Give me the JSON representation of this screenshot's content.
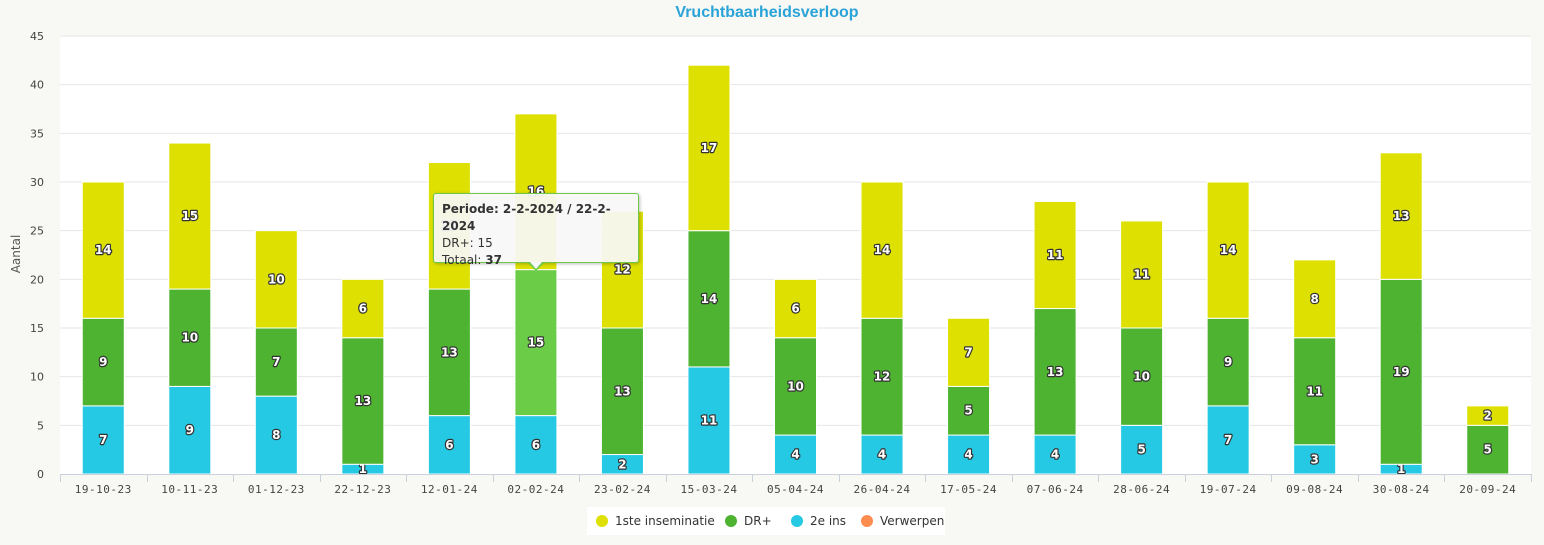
{
  "chart_data": {
    "type": "bar",
    "stacked": true,
    "title": "Vruchtbaarheidsverloop",
    "xlabel": "",
    "ylabel": "Aantal",
    "ylim": [
      0,
      45
    ],
    "yticks": [
      0,
      5,
      10,
      15,
      20,
      25,
      30,
      35,
      40,
      45
    ],
    "categories": [
      "19-10-23",
      "10-11-23",
      "01-12-23",
      "22-12-23",
      "12-01-24",
      "02-02-24",
      "23-02-24",
      "15-03-24",
      "05-04-24",
      "26-04-24",
      "17-05-24",
      "07-06-24",
      "28-06-24",
      "19-07-24",
      "09-08-24",
      "30-08-24",
      "20-09-24"
    ],
    "series": [
      {
        "name": "2e ins",
        "color": "#26c9e3",
        "values": [
          7,
          9,
          8,
          1,
          6,
          6,
          2,
          11,
          4,
          4,
          4,
          4,
          5,
          7,
          3,
          1,
          0
        ]
      },
      {
        "name": "DR+",
        "color": "#4db331",
        "values": [
          9,
          10,
          7,
          13,
          13,
          15,
          13,
          14,
          10,
          12,
          5,
          13,
          10,
          9,
          11,
          19,
          5
        ]
      },
      {
        "name": "1ste inseminatie",
        "color": "#dde000",
        "values": [
          14,
          15,
          10,
          6,
          13,
          16,
          12,
          17,
          6,
          14,
          7,
          11,
          11,
          14,
          8,
          13,
          2
        ]
      },
      {
        "name": "Verwerpen",
        "color": "#ff8c4f",
        "values": [
          0,
          0,
          0,
          0,
          0,
          0,
          0,
          0,
          0,
          0,
          0,
          0,
          0,
          0,
          0,
          0,
          0
        ]
      }
    ],
    "legend": {
      "position": "bottom-center",
      "order": [
        "1ste inseminatie",
        "DR+",
        "2e ins",
        "Verwerpen"
      ]
    },
    "highlight": {
      "category_index": 5,
      "series": "DR+",
      "color": "#6bcc48"
    },
    "grid": true
  },
  "tooltip": {
    "period_label": "Periode: 2-2-2024 / 22-2-2024",
    "series_line": "DR+: 15",
    "total_prefix": "Totaal: ",
    "total_value": "37"
  }
}
